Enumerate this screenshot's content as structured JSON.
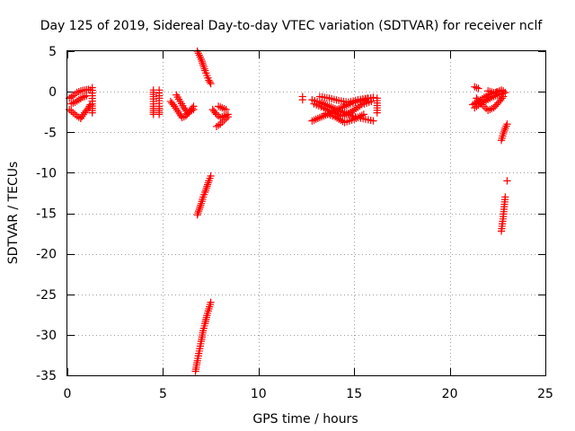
{
  "chart_data": {
    "type": "scatter",
    "title": "Day 125 of 2019, Sidereal Day-to-day VTEC variation (SDTVAR) for receiver nclf",
    "xlabel": "GPS time / hours",
    "ylabel": "SDTVAR / TECUs",
    "xlim": [
      0,
      25
    ],
    "ylim": [
      -35,
      5
    ],
    "xticks": [
      0,
      5,
      10,
      15,
      20,
      25
    ],
    "yticks": [
      5,
      0,
      -5,
      -10,
      -15,
      -20,
      -25,
      -30,
      -35
    ],
    "grid": true,
    "marker": "+",
    "color": "#ff0000",
    "segments": [
      {
        "x": [
          0.1,
          0.3,
          0.5,
          0.7,
          0.9,
          1.1,
          1.2
        ],
        "y": [
          -0.8,
          -0.5,
          -0.1,
          0.1,
          0.2,
          0.3,
          0.2
        ]
      },
      {
        "x": [
          0.2,
          0.4,
          0.6,
          0.8,
          1.0
        ],
        "y": [
          -1.5,
          -1.3,
          -1.0,
          -0.7,
          -0.5
        ]
      },
      {
        "x": [
          0.1,
          0.3,
          0.5,
          0.7
        ],
        "y": [
          -2.2,
          -2.6,
          -3.0,
          -3.3
        ]
      },
      {
        "x": [
          0.7,
          0.9,
          1.1,
          1.2
        ],
        "y": [
          -3.3,
          -2.6,
          -2.0,
          -1.6
        ]
      },
      {
        "x": [
          1.3,
          1.3,
          1.3,
          1.3
        ],
        "y": [
          0.5,
          -0.5,
          -1.5,
          -2.6
        ]
      },
      {
        "x": [
          4.5,
          4.5,
          4.5,
          4.5,
          4.5,
          4.5
        ],
        "y": [
          0.2,
          -0.6,
          -1.2,
          -1.8,
          -2.3,
          -2.8
        ]
      },
      {
        "x": [
          4.8,
          4.8,
          4.8,
          4.8,
          4.8,
          4.8
        ],
        "y": [
          0.2,
          -0.5,
          -1.1,
          -1.8,
          -2.3,
          -2.8
        ]
      },
      {
        "x": [
          5.4,
          5.6,
          5.8,
          6.0,
          6.2,
          6.4,
          6.6
        ],
        "y": [
          -1.2,
          -1.8,
          -2.5,
          -3.2,
          -3.0,
          -2.4,
          -1.8
        ]
      },
      {
        "x": [
          5.7,
          5.9,
          6.1,
          6.3,
          6.6
        ],
        "y": [
          -0.4,
          -1.2,
          -2.0,
          -2.6,
          -2.2
        ]
      },
      {
        "x": [
          6.8,
          6.9,
          7.0,
          7.1,
          7.2,
          7.3,
          7.4,
          7.5
        ],
        "y": [
          5.0,
          4.5,
          4.0,
          3.3,
          2.6,
          2.0,
          1.4,
          1.0
        ]
      },
      {
        "x": [
          6.8,
          6.9,
          7.0,
          7.1,
          7.2,
          7.3,
          7.4,
          7.5
        ],
        "y": [
          -15.2,
          -14.5,
          -13.8,
          -13.0,
          -12.4,
          -11.7,
          -11.0,
          -10.4
        ]
      },
      {
        "x": [
          6.7,
          6.8,
          6.9,
          7.0,
          7.1,
          7.2,
          7.3,
          7.4,
          7.5
        ],
        "y": [
          -34.5,
          -33.2,
          -32.0,
          -30.8,
          -29.5,
          -28.6,
          -27.6,
          -26.8,
          -26.0
        ]
      },
      {
        "x": [
          7.6,
          7.8,
          8.0,
          8.2,
          8.4
        ],
        "y": [
          -2.2,
          -2.8,
          -3.2,
          -3.0,
          -2.8
        ]
      },
      {
        "x": [
          7.8,
          8.0,
          8.2,
          8.4
        ],
        "y": [
          -4.3,
          -4.0,
          -3.5,
          -3.1
        ]
      },
      {
        "x": [
          7.9,
          8.1,
          8.3
        ],
        "y": [
          -1.8,
          -2.0,
          -2.2
        ]
      },
      {
        "x": [
          12.3,
          12.3
        ],
        "y": [
          -0.6,
          -1.0
        ]
      },
      {
        "x": [
          12.8,
          13.2,
          13.6,
          14.0,
          14.4,
          14.8,
          15.2,
          15.6,
          16.0
        ],
        "y": [
          -1.0,
          -1.3,
          -1.7,
          -2.1,
          -2.5,
          -2.9,
          -3.2,
          -3.4,
          -3.6
        ]
      },
      {
        "x": [
          12.8,
          13.2,
          13.6,
          14.0,
          14.4,
          14.8,
          15.2,
          15.6,
          16.0
        ],
        "y": [
          -3.6,
          -3.2,
          -2.8,
          -2.3,
          -1.9,
          -1.5,
          -1.2,
          -0.9,
          -0.7
        ]
      },
      {
        "x": [
          12.9,
          13.4,
          13.9,
          14.4,
          14.9,
          15.4,
          15.9
        ],
        "y": [
          -1.5,
          -2.0,
          -2.6,
          -3.0,
          -2.4,
          -1.6,
          -1.2
        ]
      },
      {
        "x": [
          13.2,
          13.7,
          14.2,
          14.7,
          15.2,
          15.7
        ],
        "y": [
          -0.6,
          -0.8,
          -1.1,
          -1.3,
          -1.0,
          -0.8
        ]
      },
      {
        "x": [
          13.5,
          14.0,
          14.5,
          15.0,
          15.5
        ],
        "y": [
          -2.7,
          -3.1,
          -3.8,
          -3.4,
          -2.8
        ]
      },
      {
        "x": [
          16.2,
          16.2,
          16.2,
          16.2
        ],
        "y": [
          -0.8,
          -1.4,
          -2.0,
          -2.6
        ]
      },
      {
        "x": [
          21.3,
          21.5
        ],
        "y": [
          0.6,
          0.4
        ]
      },
      {
        "x": [
          21.2,
          21.5,
          21.8,
          22.1,
          22.4,
          22.7
        ],
        "y": [
          -1.6,
          -1.2,
          -0.7,
          -0.3,
          -0.1,
          0.2
        ]
      },
      {
        "x": [
          21.3,
          21.6,
          21.9,
          22.2,
          22.5,
          22.8
        ],
        "y": [
          -2.0,
          -1.5,
          -1.1,
          -0.7,
          -0.4,
          -0.2
        ]
      },
      {
        "x": [
          21.4,
          21.7,
          22.0,
          22.3,
          22.6,
          22.8
        ],
        "y": [
          -0.8,
          -1.6,
          -2.3,
          -2.0,
          -1.2,
          -0.6
        ]
      },
      {
        "x": [
          22.0,
          22.3,
          22.6,
          22.8,
          22.9
        ],
        "y": [
          0.1,
          -0.1,
          0.0,
          0.1,
          -0.1
        ]
      },
      {
        "x": [
          22.7,
          22.8,
          22.9,
          23.0
        ],
        "y": [
          -6.0,
          -5.2,
          -4.5,
          -4.0
        ]
      },
      {
        "x": [
          22.7,
          22.8,
          22.9
        ],
        "y": [
          -17.2,
          -15.4,
          -13.0
        ]
      },
      {
        "x": [
          23.0
        ],
        "y": [
          -11.0
        ]
      }
    ]
  }
}
